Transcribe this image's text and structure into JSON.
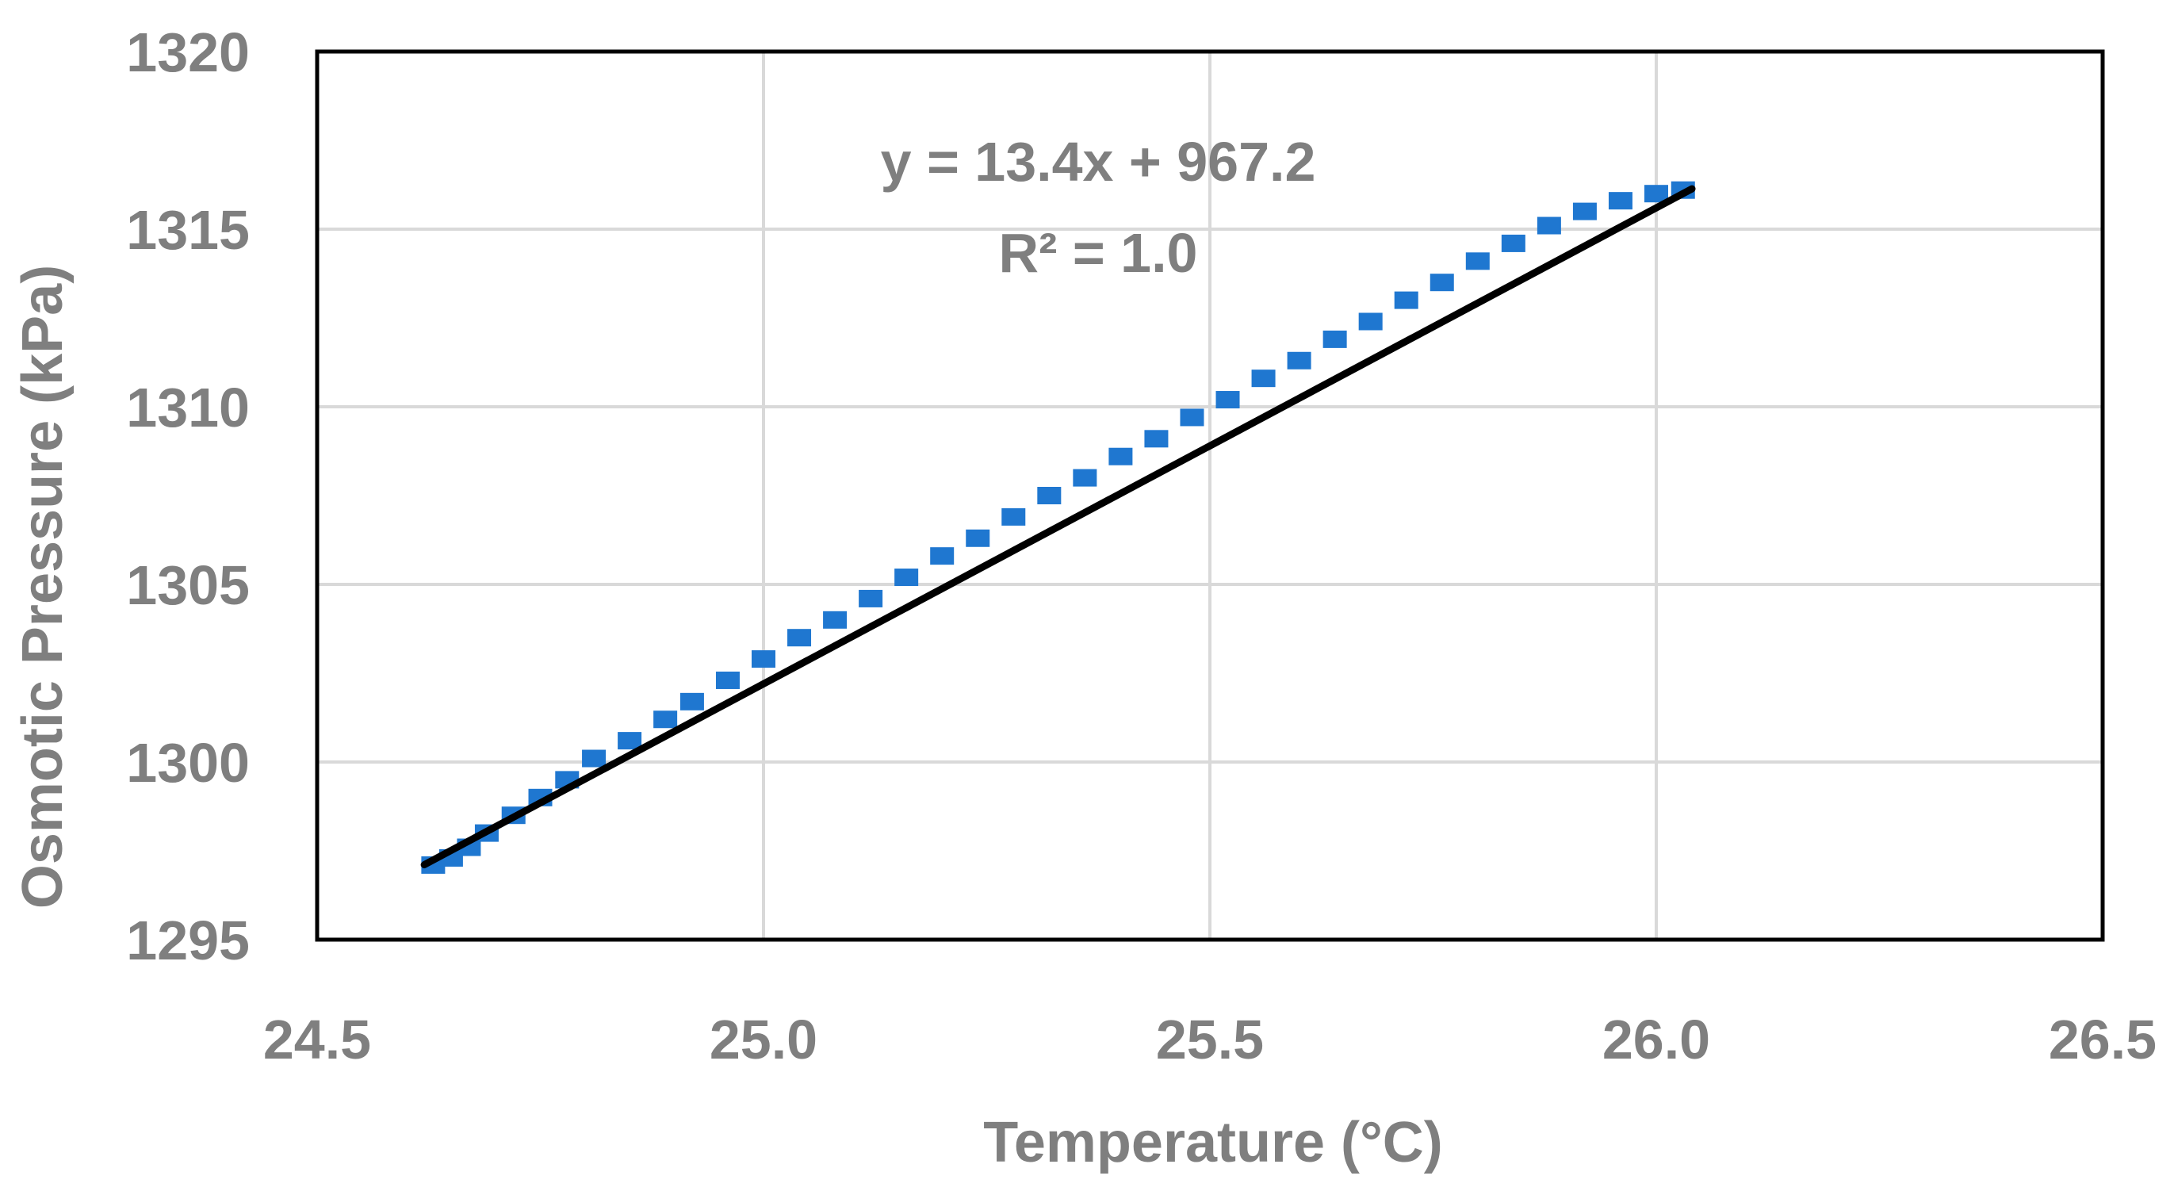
{
  "chart_data": {
    "type": "scatter",
    "title": "",
    "xlabel": "Temperature (°C)",
    "ylabel": "Osmotic Pressure (kPa)",
    "xlim": [
      24.5,
      26.5
    ],
    "ylim": [
      1295,
      1320
    ],
    "x_ticks": [
      "24.5",
      "25.0",
      "25.5",
      "26.0",
      "26.5"
    ],
    "y_ticks": [
      "1320",
      "1315",
      "1310",
      "1305",
      "1300",
      "1295"
    ],
    "grid": true,
    "legend": "none",
    "colors": {
      "points": "#1f77d0",
      "trendline": "#000000",
      "grid": "#d9d9d9",
      "text": "#7f7f7f"
    },
    "series": [
      {
        "marker": "square",
        "x": [
          24.63,
          24.65,
          24.67,
          24.69,
          24.72,
          24.75,
          24.78,
          24.81,
          24.85,
          24.89,
          24.92,
          24.96,
          25.0,
          25.04,
          25.08,
          25.12,
          25.16,
          25.2,
          25.24,
          25.28,
          25.32,
          25.36,
          25.4,
          25.44,
          25.48,
          25.52,
          25.56,
          25.6,
          25.64,
          25.68,
          25.72,
          25.76,
          25.8,
          25.84,
          25.88,
          25.92,
          25.96,
          26.0,
          26.03
        ],
        "y": [
          1297.1,
          1297.3,
          1297.6,
          1298.0,
          1298.5,
          1299.0,
          1299.5,
          1300.1,
          1300.6,
          1301.2,
          1301.7,
          1302.3,
          1302.9,
          1303.5,
          1304.0,
          1304.6,
          1305.2,
          1305.8,
          1306.3,
          1306.9,
          1307.5,
          1308.0,
          1308.6,
          1309.1,
          1309.7,
          1310.2,
          1310.8,
          1311.3,
          1311.9,
          1312.4,
          1313.0,
          1313.5,
          1314.1,
          1314.6,
          1315.1,
          1315.5,
          1315.8,
          1316.0,
          1316.1
        ]
      }
    ],
    "trendline": {
      "x_start": 24.62,
      "x_end": 26.04,
      "slope": 13.4,
      "intercept": 967.2,
      "equation": "y = 13.4x + 967.2",
      "r2_label": "R² = 1.0"
    }
  }
}
